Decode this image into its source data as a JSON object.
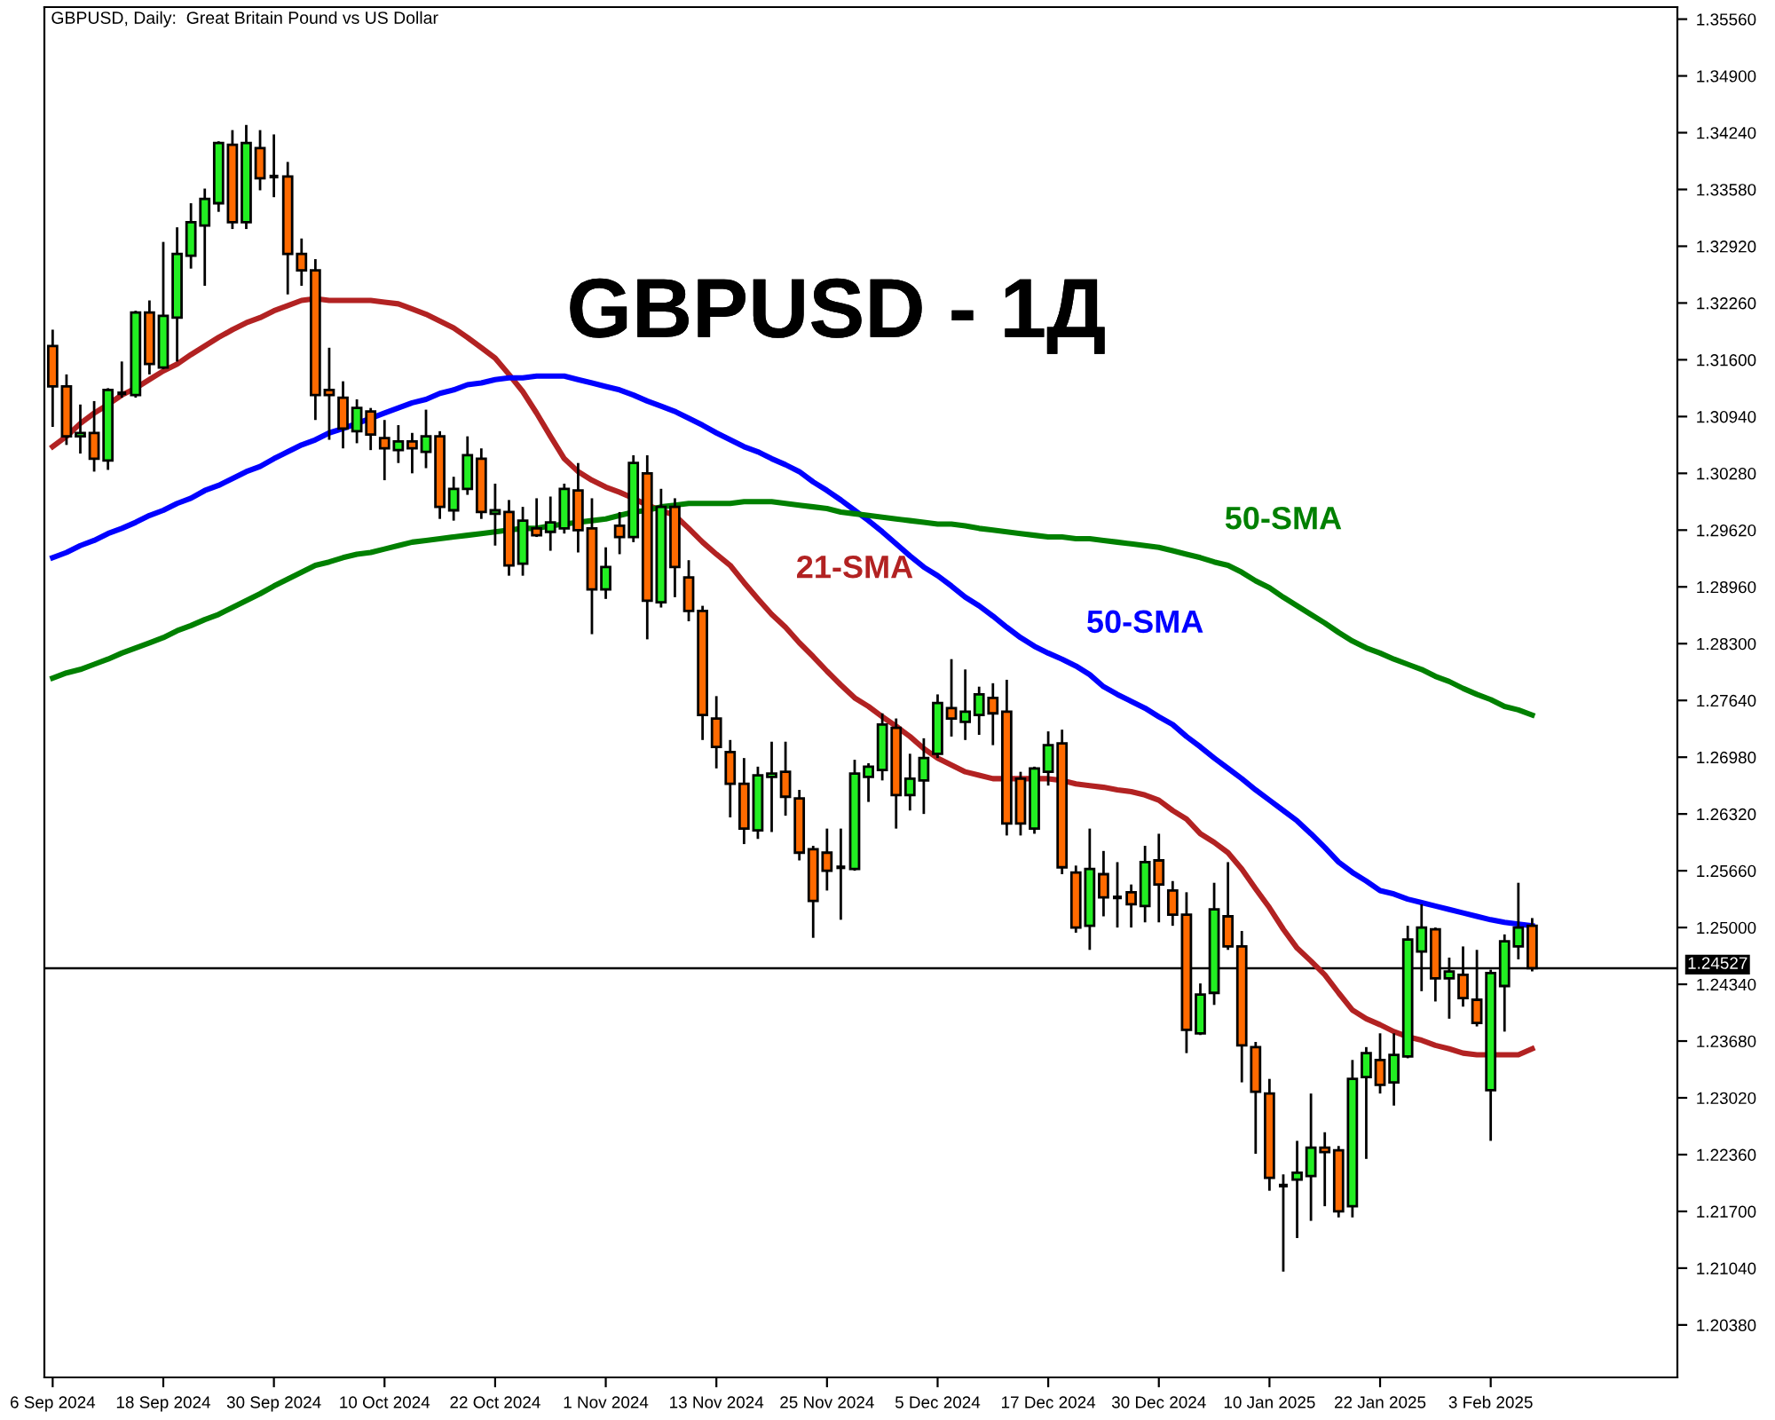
{
  "chart_data": {
    "type": "candlestick",
    "title": "GBPUSD - 1Д",
    "annotations": [
      "GBPUSD, Daily:  Great Britain Pound vs US Dollar"
    ],
    "categories": [
      "6 Sep 2024",
      null,
      null,
      null,
      null,
      null,
      null,
      null,
      "18 Sep 2024",
      null,
      null,
      null,
      null,
      null,
      null,
      null,
      "30 Sep 2024",
      null,
      null,
      null,
      null,
      null,
      null,
      null,
      "10 Oct 2024",
      null,
      null,
      null,
      null,
      null,
      null,
      null,
      "22 Oct 2024",
      null,
      null,
      null,
      null,
      null,
      null,
      null,
      "1 Nov 2024",
      null,
      null,
      null,
      null,
      null,
      null,
      null,
      "13 Nov 2024",
      null,
      null,
      null,
      null,
      null,
      null,
      null,
      "25 Nov 2024",
      null,
      null,
      null,
      null,
      null,
      null,
      null,
      "5 Dec 2024",
      null,
      null,
      null,
      null,
      null,
      null,
      null,
      "17 Dec 2024",
      null,
      null,
      null,
      null,
      null,
      null,
      null,
      "30 Dec 2024",
      null,
      null,
      null,
      null,
      null,
      null,
      null,
      "10 Jan 2025",
      null,
      null,
      null,
      null,
      null,
      null,
      null,
      "22 Jan 2025",
      null,
      null,
      null,
      null,
      null,
      null,
      null,
      "3 Feb 2025",
      null,
      null,
      null
    ],
    "ohlc": [
      [
        1.3176,
        1.3195,
        1.3082,
        1.3129
      ],
      [
        1.3129,
        1.3143,
        1.3061,
        1.3071
      ],
      [
        1.3071,
        1.3108,
        1.3051,
        1.3075
      ],
      [
        1.3075,
        1.3112,
        1.303,
        1.3045
      ],
      [
        1.3043,
        1.3127,
        1.3032,
        1.3125
      ],
      [
        1.3121,
        1.3158,
        1.3116,
        1.3121
      ],
      [
        1.3119,
        1.3217,
        1.3116,
        1.3215
      ],
      [
        1.3215,
        1.3229,
        1.3143,
        1.3155
      ],
      [
        1.3151,
        1.3297,
        1.3149,
        1.3211
      ],
      [
        1.3209,
        1.3314,
        1.3158,
        1.3283
      ],
      [
        1.3281,
        1.3342,
        1.3266,
        1.332
      ],
      [
        1.3316,
        1.3359,
        1.3246,
        1.3347
      ],
      [
        1.3342,
        1.3414,
        1.3332,
        1.3412
      ],
      [
        1.341,
        1.3427,
        1.3312,
        1.332
      ],
      [
        1.332,
        1.3433,
        1.3312,
        1.3412
      ],
      [
        1.3406,
        1.3427,
        1.3357,
        1.3371
      ],
      [
        1.3373,
        1.3422,
        1.3349,
        1.3373
      ],
      [
        1.3373,
        1.339,
        1.3236,
        1.3283
      ],
      [
        1.3283,
        1.3301,
        1.3246,
        1.3264
      ],
      [
        1.3264,
        1.3277,
        1.309,
        1.3119
      ],
      [
        1.3125,
        1.3174,
        1.3067,
        1.3119
      ],
      [
        1.3116,
        1.3135,
        1.3057,
        1.308
      ],
      [
        1.3077,
        1.3114,
        1.3063,
        1.3104
      ],
      [
        1.31,
        1.3104,
        1.3055,
        1.3073
      ],
      [
        1.3069,
        1.309,
        1.302,
        1.3057
      ],
      [
        1.3055,
        1.3084,
        1.304,
        1.3065
      ],
      [
        1.3065,
        1.3075,
        1.3028,
        1.3057
      ],
      [
        1.3053,
        1.3102,
        1.3034,
        1.3071
      ],
      [
        1.3071,
        1.3077,
        1.2975,
        1.2989
      ],
      [
        1.2985,
        1.3024,
        1.2973,
        1.301
      ],
      [
        1.301,
        1.3071,
        1.3003,
        1.3049
      ],
      [
        1.3045,
        1.3057,
        1.2975,
        1.2983
      ],
      [
        1.2981,
        1.3016,
        1.2944,
        1.2985
      ],
      [
        1.2983,
        1.2997,
        1.2909,
        1.2921
      ],
      [
        1.2923,
        1.2989,
        1.2909,
        1.2973
      ],
      [
        1.2964,
        1.2999,
        1.2954,
        1.2956
      ],
      [
        1.296,
        1.3001,
        1.2938,
        1.2971
      ],
      [
        1.2964,
        1.3016,
        1.2958,
        1.301
      ],
      [
        1.3008,
        1.304,
        1.2936,
        1.2962
      ],
      [
        1.2964,
        1.2999,
        1.2841,
        1.2893
      ],
      [
        1.2893,
        1.2942,
        1.2882,
        1.2919
      ],
      [
        1.2967,
        1.2983,
        1.2934,
        1.2954
      ],
      [
        1.2954,
        1.3049,
        1.2948,
        1.304
      ],
      [
        1.3028,
        1.3049,
        1.2835,
        1.288
      ],
      [
        1.2878,
        1.301,
        1.2872,
        1.2989
      ],
      [
        1.2989,
        1.2999,
        1.2884,
        1.2919
      ],
      [
        1.2907,
        1.2927,
        1.2856,
        1.2868
      ],
      [
        1.2868,
        1.2874,
        1.2718,
        1.2747
      ],
      [
        1.2743,
        1.2769,
        1.2685,
        1.271
      ],
      [
        1.2704,
        1.2718,
        1.2628,
        1.2667
      ],
      [
        1.2667,
        1.2697,
        1.2597,
        1.2615
      ],
      [
        1.2613,
        1.2687,
        1.2603,
        1.2677
      ],
      [
        1.2675,
        1.2716,
        1.2611,
        1.2679
      ],
      [
        1.2681,
        1.2716,
        1.263,
        1.2652
      ],
      [
        1.265,
        1.266,
        1.2578,
        1.2587
      ],
      [
        1.2591,
        1.2595,
        1.2488,
        1.2531
      ],
      [
        1.2587,
        1.2615,
        1.2543,
        1.2566
      ],
      [
        1.257,
        1.2615,
        1.2509,
        1.257
      ],
      [
        1.2568,
        1.2695,
        1.2566,
        1.2679
      ],
      [
        1.2675,
        1.2691,
        1.2646,
        1.2687
      ],
      [
        1.2683,
        1.2749,
        1.2671,
        1.2736
      ],
      [
        1.2732,
        1.2743,
        1.2615,
        1.2654
      ],
      [
        1.2654,
        1.2702,
        1.2636,
        1.2673
      ],
      [
        1.2671,
        1.272,
        1.2632,
        1.2697
      ],
      [
        1.2702,
        1.2771,
        1.2697,
        1.2761
      ],
      [
        1.2755,
        1.2812,
        1.2722,
        1.2743
      ],
      [
        1.2739,
        1.28,
        1.2718,
        1.2751
      ],
      [
        1.2747,
        1.278,
        1.2724,
        1.2771
      ],
      [
        1.2767,
        1.2784,
        1.2712,
        1.2749
      ],
      [
        1.2751,
        1.2788,
        1.2607,
        1.2621
      ],
      [
        1.2673,
        1.2681,
        1.2607,
        1.2621
      ],
      [
        1.2615,
        1.2687,
        1.2609,
        1.2685
      ],
      [
        1.2681,
        1.2728,
        1.2665,
        1.2712
      ],
      [
        1.2714,
        1.273,
        1.2562,
        1.257
      ],
      [
        1.2564,
        1.2572,
        1.2494,
        1.25
      ],
      [
        1.2502,
        1.2615,
        1.2474,
        1.2568
      ],
      [
        1.2562,
        1.2589,
        1.2513,
        1.2535
      ],
      [
        1.2535,
        1.2576,
        1.25,
        1.2535
      ],
      [
        1.2541,
        1.255,
        1.25,
        1.2527
      ],
      [
        1.2525,
        1.2595,
        1.2506,
        1.2576
      ],
      [
        1.2578,
        1.2609,
        1.2506,
        1.255
      ],
      [
        1.2543,
        1.2554,
        1.2502,
        1.2515
      ],
      [
        1.2515,
        1.2541,
        1.2354,
        1.2381
      ],
      [
        1.2377,
        1.2435,
        1.2375,
        1.2422
      ],
      [
        1.2424,
        1.2552,
        1.241,
        1.2521
      ],
      [
        1.2513,
        1.2576,
        1.2474,
        1.2478
      ],
      [
        1.2478,
        1.2496,
        1.232,
        1.2363
      ],
      [
        1.2361,
        1.2367,
        1.2237,
        1.2309
      ],
      [
        1.2307,
        1.2324,
        1.2194,
        1.2209
      ],
      [
        1.22,
        1.2213,
        1.21,
        1.22
      ],
      [
        1.2207,
        1.2252,
        1.2139,
        1.2215
      ],
      [
        1.2211,
        1.2307,
        1.2159,
        1.2244
      ],
      [
        1.2244,
        1.2262,
        1.2176,
        1.2239
      ],
      [
        1.2241,
        1.2246,
        1.2163,
        1.217
      ],
      [
        1.2176,
        1.2346,
        1.2163,
        1.2324
      ],
      [
        1.2326,
        1.2361,
        1.2231,
        1.2354
      ],
      [
        1.2346,
        1.2377,
        1.2307,
        1.2317
      ],
      [
        1.232,
        1.2377,
        1.2293,
        1.2352
      ],
      [
        1.235,
        1.2502,
        1.2348,
        1.2486
      ],
      [
        1.2472,
        1.2527,
        1.2426,
        1.25
      ],
      [
        1.2498,
        1.25,
        1.2414,
        1.2441
      ],
      [
        1.2441,
        1.2465,
        1.2394,
        1.2449
      ],
      [
        1.2445,
        1.2478,
        1.2408,
        1.2418
      ],
      [
        1.2416,
        1.2474,
        1.2385,
        1.2389
      ],
      [
        1.2311,
        1.2451,
        1.2252,
        1.2447
      ],
      [
        1.2432,
        1.2492,
        1.2379,
        1.2484
      ],
      [
        1.2478,
        1.2552,
        1.2463,
        1.25
      ],
      [
        1.2502,
        1.2511,
        1.2449,
        1.24527
      ]
    ],
    "colors": [
      "#ff6a00",
      "#ff6a00",
      "#22ee22",
      "#ff6a00",
      "#22ee22",
      "#000000",
      "#22ee22",
      "#ff6a00",
      "#22ee22",
      "#22ee22",
      "#22ee22",
      "#22ee22",
      "#22ee22",
      "#ff6a00",
      "#22ee22",
      "#ff6a00",
      "#000000",
      "#ff6a00",
      "#ff6a00",
      "#ff6a00",
      "#ff6a00",
      "#ff6a00",
      "#22ee22",
      "#ff6a00",
      "#ff6a00",
      "#22ee22",
      "#ff6a00",
      "#22ee22",
      "#ff6a00",
      "#22ee22",
      "#22ee22",
      "#ff6a00",
      "#22ee22",
      "#ff6a00",
      "#22ee22",
      "#ff6a00",
      "#22ee22",
      "#22ee22",
      "#ff6a00",
      "#ff6a00",
      "#22ee22",
      "#ff6a00",
      "#22ee22",
      "#ff6a00",
      "#22ee22",
      "#ff6a00",
      "#ff6a00",
      "#ff6a00",
      "#ff6a00",
      "#ff6a00",
      "#ff6a00",
      "#22ee22",
      "#22ee22",
      "#ff6a00",
      "#ff6a00",
      "#ff6a00",
      "#ff6a00",
      "#000000",
      "#22ee22",
      "#22ee22",
      "#22ee22",
      "#ff6a00",
      "#22ee22",
      "#22ee22",
      "#22ee22",
      "#ff6a00",
      "#22ee22",
      "#22ee22",
      "#ff6a00",
      "#ff6a00",
      "#ff6a00",
      "#22ee22",
      "#22ee22",
      "#ff6a00",
      "#ff6a00",
      "#22ee22",
      "#ff6a00",
      "#000000",
      "#ff6a00",
      "#22ee22",
      "#ff6a00",
      "#ff6a00",
      "#ff6a00",
      "#22ee22",
      "#22ee22",
      "#ff6a00",
      "#ff6a00",
      "#ff6a00",
      "#ff6a00",
      "#000000",
      "#22ee22",
      "#22ee22",
      "#ff6a00",
      "#ff6a00",
      "#22ee22",
      "#22ee22",
      "#ff6a00",
      "#22ee22",
      "#22ee22",
      "#22ee22",
      "#ff6a00",
      "#22ee22",
      "#ff6a00",
      "#ff6a00",
      "#22ee22",
      "#22ee22",
      "#22ee22",
      "#ff6a00"
    ],
    "series": [
      {
        "type": "line",
        "name": "21-SMA",
        "color": "#b22222",
        "values": [
          1.3059,
          1.3071,
          1.3086,
          1.3098,
          1.3108,
          1.3119,
          1.3127,
          1.3137,
          1.3147,
          1.3155,
          1.3166,
          1.3176,
          1.3186,
          1.3195,
          1.3203,
          1.3209,
          1.3217,
          1.3223,
          1.3229,
          1.3231,
          1.3229,
          1.3229,
          1.3229,
          1.3229,
          1.3227,
          1.3225,
          1.3219,
          1.3213,
          1.3205,
          1.3197,
          1.3186,
          1.3174,
          1.3162,
          1.3143,
          1.3123,
          1.3098,
          1.3071,
          1.3045,
          1.303,
          1.302,
          1.3012,
          1.3006,
          1.2999,
          1.2991,
          1.2985,
          1.2979,
          1.2964,
          1.2948,
          1.2934,
          1.2921,
          1.2901,
          1.2882,
          1.2864,
          1.2849,
          1.2831,
          1.2815,
          1.2798,
          1.2782,
          1.2767,
          1.2757,
          1.2745,
          1.2734,
          1.2722,
          1.2708,
          1.2697,
          1.2689,
          1.2681,
          1.2677,
          1.2673,
          1.2673,
          1.2673,
          1.2673,
          1.2673,
          1.2671,
          1.2667,
          1.2665,
          1.2663,
          1.266,
          1.2658,
          1.2654,
          1.2648,
          1.2636,
          1.2626,
          1.2609,
          1.2599,
          1.2587,
          1.2568,
          1.2545,
          1.2523,
          1.2498,
          1.2476,
          1.2461,
          1.2445,
          1.2424,
          1.2404,
          1.2394,
          1.2387,
          1.2379,
          1.2373,
          1.2369,
          1.2363,
          1.2359,
          1.2354,
          1.2352,
          1.2352,
          1.2352,
          1.2352,
          1.2359
        ]
      },
      {
        "type": "line",
        "name": "50-SMA",
        "color": "#0000ff",
        "values": [
          1.293,
          1.2936,
          1.2944,
          1.295,
          1.2958,
          1.2964,
          1.2971,
          1.2979,
          1.2985,
          1.2993,
          1.2999,
          1.3008,
          1.3014,
          1.3022,
          1.303,
          1.3036,
          1.3045,
          1.3053,
          1.3061,
          1.3067,
          1.3075,
          1.308,
          1.3086,
          1.3092,
          1.3098,
          1.3104,
          1.311,
          1.3114,
          1.3121,
          1.3125,
          1.3131,
          1.3133,
          1.3137,
          1.3139,
          1.3139,
          1.3141,
          1.3141,
          1.3141,
          1.3137,
          1.3133,
          1.3129,
          1.3125,
          1.3119,
          1.3112,
          1.3106,
          1.31,
          1.3092,
          1.3084,
          1.3075,
          1.3067,
          1.3059,
          1.3053,
          1.3045,
          1.3038,
          1.303,
          1.3018,
          1.3008,
          1.2997,
          1.2985,
          1.2973,
          1.296,
          1.2946,
          1.2932,
          1.2919,
          1.2909,
          1.2897,
          1.2884,
          1.2874,
          1.2862,
          1.2849,
          1.2837,
          1.2827,
          1.2819,
          1.2812,
          1.2804,
          1.2794,
          1.278,
          1.2771,
          1.2763,
          1.2755,
          1.2745,
          1.2736,
          1.2722,
          1.271,
          1.2697,
          1.2685,
          1.2673,
          1.266,
          1.2648,
          1.2636,
          1.2624,
          1.2609,
          1.2593,
          1.2576,
          1.2564,
          1.2554,
          1.2543,
          1.2539,
          1.2533,
          1.2529,
          1.2525,
          1.2521,
          1.2517,
          1.2513,
          1.2509,
          1.2506,
          1.2504,
          1.2502
        ]
      },
      {
        "type": "line",
        "name": "50-SMA",
        "color": "#008000",
        "values": [
          1.279,
          1.2796,
          1.28,
          1.2806,
          1.2812,
          1.2819,
          1.2825,
          1.2831,
          1.2837,
          1.2845,
          1.2851,
          1.2858,
          1.2864,
          1.2872,
          1.288,
          1.2888,
          1.2897,
          1.2905,
          1.2913,
          1.2921,
          1.2925,
          1.293,
          1.2934,
          1.2936,
          1.294,
          1.2944,
          1.2948,
          1.295,
          1.2952,
          1.2954,
          1.2956,
          1.2958,
          1.296,
          1.2962,
          1.2964,
          1.2964,
          1.2967,
          1.2969,
          1.2971,
          1.2973,
          1.2975,
          1.2979,
          1.2983,
          1.2985,
          1.2989,
          1.2991,
          1.2993,
          1.2993,
          1.2993,
          1.2993,
          1.2995,
          1.2995,
          1.2995,
          1.2993,
          1.2991,
          1.2989,
          1.2987,
          1.2983,
          1.2981,
          1.2979,
          1.2977,
          1.2975,
          1.2973,
          1.2971,
          1.2969,
          1.2969,
          1.2967,
          1.2964,
          1.2962,
          1.296,
          1.2958,
          1.2956,
          1.2954,
          1.2954,
          1.2952,
          1.2952,
          1.295,
          1.2948,
          1.2946,
          1.2944,
          1.2942,
          1.2938,
          1.2934,
          1.293,
          1.2925,
          1.2921,
          1.2913,
          1.2903,
          1.2895,
          1.2884,
          1.2874,
          1.2864,
          1.2854,
          1.2843,
          1.2833,
          1.2825,
          1.2819,
          1.2812,
          1.2806,
          1.28,
          1.2792,
          1.2786,
          1.2778,
          1.2771,
          1.2765,
          1.2757,
          1.2753,
          1.2747
        ]
      }
    ],
    "ylim": [
      1.1977,
      1.357
    ],
    "yticks": [
      {
        "value": 1.3556,
        "label": "1.35560"
      },
      {
        "value": 1.349,
        "label": "1.34900"
      },
      {
        "value": 1.3424,
        "label": "1.34240"
      },
      {
        "value": 1.3358,
        "label": "1.33580"
      },
      {
        "value": 1.3292,
        "label": "1.32920"
      },
      {
        "value": 1.3226,
        "label": "1.32260"
      },
      {
        "value": 1.316,
        "label": "1.31600"
      },
      {
        "value": 1.3094,
        "label": "1.30940"
      },
      {
        "value": 1.3028,
        "label": "1.30280"
      },
      {
        "value": 1.2962,
        "label": "1.29620"
      },
      {
        "value": 1.2896,
        "label": "1.28960"
      },
      {
        "value": 1.283,
        "label": "1.28300"
      },
      {
        "value": 1.2764,
        "label": "1.27640"
      },
      {
        "value": 1.2698,
        "label": "1.26980"
      },
      {
        "value": 1.2632,
        "label": "1.26320"
      },
      {
        "value": 1.2566,
        "label": "1.25660"
      },
      {
        "value": 1.25,
        "label": "1.25000"
      },
      {
        "value": 1.2434,
        "label": "1.24340"
      },
      {
        "value": 1.2368,
        "label": "1.23680"
      },
      {
        "value": 1.2302,
        "label": "1.23020"
      },
      {
        "value": 1.2236,
        "label": "1.22360"
      },
      {
        "value": 1.217,
        "label": "1.21700"
      },
      {
        "value": 1.2104,
        "label": "1.21040"
      },
      {
        "value": 1.2038,
        "label": "1.20380"
      }
    ],
    "ref_lines": [
      {
        "axis": "y",
        "value": 1.24527,
        "label": "1.24527",
        "color": "#000000"
      }
    ],
    "grid": false,
    "legend": false
  }
}
